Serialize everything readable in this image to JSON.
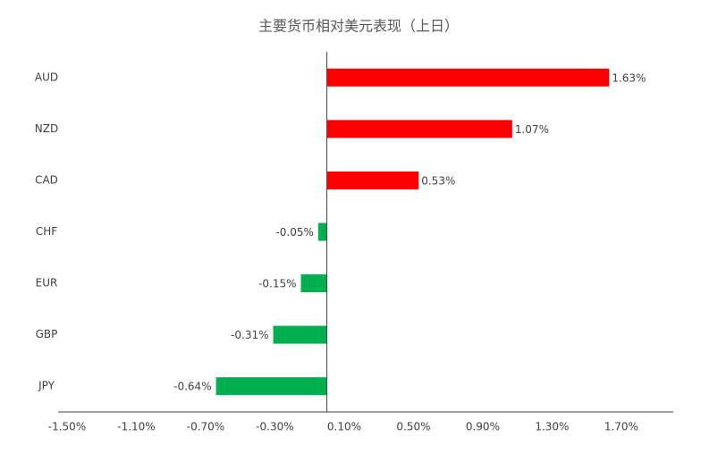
{
  "chart_data": {
    "type": "hbar",
    "title": "主要货币相对美元表现（上日）",
    "categories": [
      "AUD",
      "NZD",
      "CAD",
      "CHF",
      "EUR",
      "GBP",
      "JPY"
    ],
    "values": [
      1.63,
      1.07,
      0.53,
      -0.05,
      -0.15,
      -0.31,
      -0.64
    ],
    "value_labels": [
      "1.63%",
      "1.07%",
      "0.53%",
      "-0.05%",
      "-0.15%",
      "-0.31%",
      "-0.64%"
    ],
    "positive_color": "#ff0000",
    "negative_color": "#00b050",
    "xlim": [
      -1.5,
      2.0
    ],
    "xticks": [
      {
        "value": -1.5,
        "label": "-1.50%"
      },
      {
        "value": -1.1,
        "label": "-1.10%"
      },
      {
        "value": -0.7,
        "label": "-0.70%"
      },
      {
        "value": -0.3,
        "label": "-0.30%"
      },
      {
        "value": 0.1,
        "label": "0.10%"
      },
      {
        "value": 0.5,
        "label": "0.50%"
      },
      {
        "value": 0.9,
        "label": "0.90%"
      },
      {
        "value": 1.3,
        "label": "1.30%"
      },
      {
        "value": 1.7,
        "label": "1.70%"
      }
    ]
  }
}
